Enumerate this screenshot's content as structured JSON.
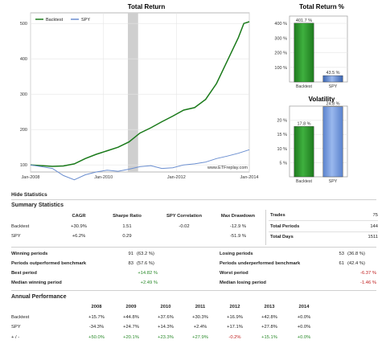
{
  "charts": {
    "total_return_title": "Total Return",
    "total_return_pct_title": "Total Return %",
    "volatility_title": "Volatility",
    "watermark": "www.ETFreplay.com"
  },
  "chart_data": [
    {
      "type": "line",
      "title": "Total Return",
      "x_ticks": [
        "Jan-2008",
        "Jan-2010",
        "Jan-2012",
        "Jan-2014"
      ],
      "y_ticks": [
        100,
        200,
        300,
        400,
        500
      ],
      "ylim": [
        80,
        530
      ],
      "xlim": [
        2008.0,
        2014.0
      ],
      "legend_position": "top-left",
      "shaded_region": [
        "2010-09",
        "2010-12"
      ],
      "series": [
        {
          "name": "Backtest",
          "color": "#1a7a1a",
          "x": [
            2008.0,
            2008.3,
            2008.6,
            2008.9,
            2009.2,
            2009.5,
            2009.8,
            2010.1,
            2010.4,
            2010.7,
            2011.0,
            2011.3,
            2011.6,
            2011.9,
            2012.2,
            2012.5,
            2012.8,
            2013.1,
            2013.4,
            2013.7,
            2013.85,
            2014.0
          ],
          "y": [
            100,
            98,
            96,
            97,
            103,
            118,
            130,
            140,
            150,
            165,
            190,
            205,
            222,
            238,
            255,
            262,
            285,
            330,
            395,
            460,
            500,
            505
          ]
        },
        {
          "name": "SPY",
          "color": "#6a8ed0",
          "x": [
            2008.0,
            2008.3,
            2008.6,
            2008.9,
            2009.2,
            2009.5,
            2009.8,
            2010.1,
            2010.4,
            2010.7,
            2011.0,
            2011.3,
            2011.6,
            2011.9,
            2012.2,
            2012.5,
            2012.8,
            2013.1,
            2013.4,
            2013.7,
            2014.0
          ],
          "y": [
            100,
            95,
            90,
            70,
            58,
            72,
            80,
            85,
            82,
            88,
            95,
            98,
            90,
            92,
            100,
            103,
            108,
            118,
            125,
            133,
            143
          ]
        }
      ]
    },
    {
      "type": "bar",
      "title": "Total Return %",
      "categories": [
        "Backtest",
        "SPY"
      ],
      "values": [
        401.7,
        43.5
      ],
      "value_labels": [
        "401.7 %",
        "43.5 %"
      ],
      "colors": [
        "#1e7a1e",
        "#3a64b0"
      ],
      "y_ticks": [
        "100 %",
        "200 %",
        "300 %",
        "400 %"
      ],
      "ylim": [
        0,
        450
      ]
    },
    {
      "type": "bar",
      "title": "Volatility",
      "categories": [
        "Backtest",
        "SPY"
      ],
      "values": [
        17.8,
        24.8
      ],
      "value_labels": [
        "17.8 %",
        "24.8 %"
      ],
      "colors": [
        "#1e7a1e",
        "#5a82cc"
      ],
      "y_ticks": [
        "5 %",
        "10 %",
        "15 %",
        "20 %"
      ],
      "ylim": [
        0,
        25
      ]
    }
  ],
  "hide_statistics_label": "Hide Statistics",
  "summary": {
    "title": "Summary Statistics",
    "headers": [
      "CAGR",
      "Sharpe Ratio",
      "SPY Correlation",
      "Max Drawdown"
    ],
    "rows": [
      {
        "label": "Backtest",
        "cagr": "+30.9%",
        "sharpe": "1.51",
        "corr": "-0.02",
        "dd": "-12.9 %"
      },
      {
        "label": "SPY",
        "cagr": "+6.2%",
        "sharpe": "0.29",
        "corr": "",
        "dd": "-51.9 %"
      }
    ],
    "trades": [
      {
        "label": "Trades",
        "value": "75"
      },
      {
        "label": "Total Periods",
        "value": "144"
      },
      {
        "label": "Total Days",
        "value": "1511"
      }
    ]
  },
  "periods": {
    "winning_label": "Winning periods",
    "winning_count": "91",
    "winning_pct": "(63.2 %)",
    "outperf_label": "Periods outperformed benchmark",
    "outperf_count": "83",
    "outperf_pct": "(57.6 %)",
    "best_label": "Best period",
    "best_value": "+14.82 %",
    "median_win_label": "Median winning period",
    "median_win_value": "+2.49 %",
    "losing_label": "Losing periods",
    "losing_count": "53",
    "losing_pct": "(36.8 %)",
    "underperf_label": "Periods underperformed benchmark",
    "underperf_count": "61",
    "underperf_pct": "(42.4 %)",
    "worst_label": "Worst period",
    "worst_value": "-6.37 %",
    "median_lose_label": "Median losing period",
    "median_lose_value": "-1.46 %"
  },
  "annual": {
    "title": "Annual Performance",
    "years": [
      "2008",
      "2009",
      "2010",
      "2011",
      "2012",
      "2013",
      "2014"
    ],
    "rows": [
      {
        "label": "Backtest",
        "values": [
          "+15.7%",
          "+44.8%",
          "+37.6%",
          "+30.3%",
          "+16.9%",
          "+42.8%",
          "+0.0%"
        ]
      },
      {
        "label": "SPY",
        "values": [
          "-34.3%",
          "+24.7%",
          "+14.3%",
          "+2.4%",
          "+17.1%",
          "+27.8%",
          "+0.0%"
        ]
      },
      {
        "label": "+ / -",
        "values": [
          "+50.0%",
          "+20.1%",
          "+23.3%",
          "+27.9%",
          "-0.2%",
          "+15.1%",
          "+0.0%"
        ]
      }
    ]
  }
}
